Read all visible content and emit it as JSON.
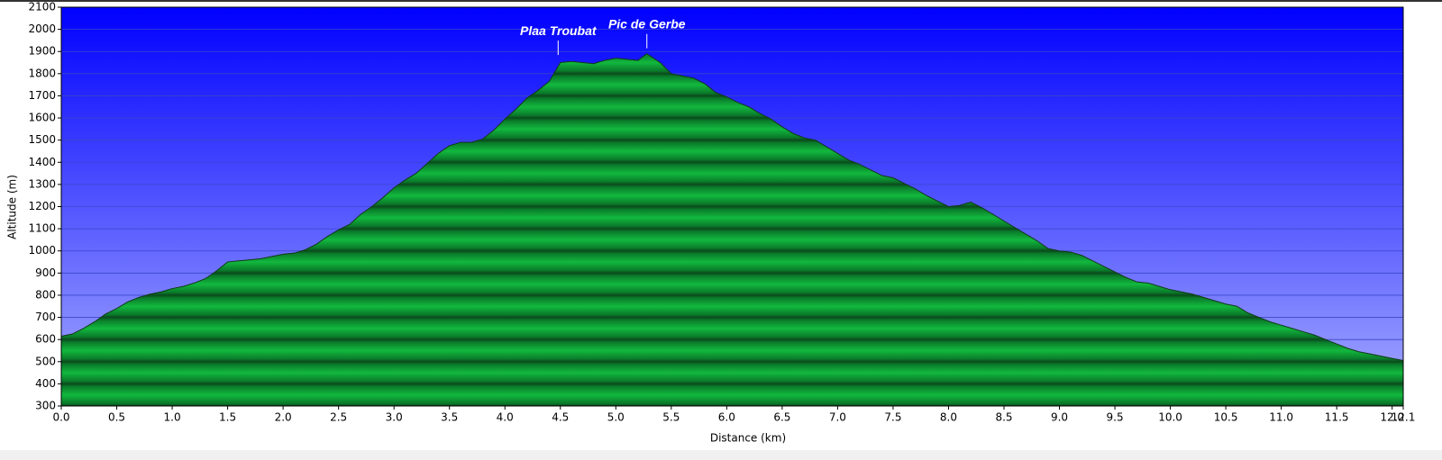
{
  "chart_data": {
    "type": "area",
    "x_label": "Distance   (km)",
    "y_label": "Altitude (m)",
    "x": [
      0.0,
      0.1,
      0.2,
      0.3,
      0.4,
      0.5,
      0.6,
      0.7,
      0.8,
      0.9,
      1.0,
      1.1,
      1.2,
      1.3,
      1.4,
      1.5,
      1.6,
      1.7,
      1.8,
      1.9,
      2.0,
      2.1,
      2.2,
      2.3,
      2.4,
      2.5,
      2.6,
      2.7,
      2.8,
      2.9,
      3.0,
      3.1,
      3.2,
      3.3,
      3.4,
      3.5,
      3.6,
      3.7,
      3.8,
      3.9,
      4.0,
      4.1,
      4.2,
      4.3,
      4.4,
      4.5,
      4.6,
      4.7,
      4.8,
      4.9,
      5.0,
      5.1,
      5.2,
      5.28,
      5.4,
      5.5,
      5.6,
      5.7,
      5.8,
      5.9,
      6.0,
      6.1,
      6.2,
      6.3,
      6.4,
      6.5,
      6.6,
      6.7,
      6.8,
      6.9,
      7.0,
      7.1,
      7.2,
      7.3,
      7.4,
      7.5,
      7.6,
      7.7,
      7.8,
      7.9,
      8.0,
      8.1,
      8.2,
      8.3,
      8.4,
      8.5,
      8.6,
      8.7,
      8.8,
      8.9,
      9.0,
      9.1,
      9.2,
      9.3,
      9.4,
      9.5,
      9.6,
      9.7,
      9.8,
      9.9,
      10.0,
      10.1,
      10.2,
      10.3,
      10.4,
      10.5,
      10.6,
      10.7,
      10.8,
      10.9,
      11.0,
      11.1,
      11.2,
      11.3,
      11.4,
      11.5,
      11.6,
      11.7,
      11.8,
      11.9,
      12.0,
      12.1
    ],
    "values": [
      615,
      625,
      650,
      680,
      715,
      740,
      770,
      790,
      805,
      815,
      830,
      840,
      855,
      875,
      910,
      950,
      955,
      960,
      965,
      975,
      985,
      990,
      1005,
      1030,
      1065,
      1095,
      1120,
      1165,
      1200,
      1240,
      1285,
      1320,
      1350,
      1395,
      1440,
      1475,
      1490,
      1490,
      1505,
      1545,
      1595,
      1640,
      1690,
      1725,
      1765,
      1850,
      1855,
      1850,
      1845,
      1860,
      1870,
      1865,
      1860,
      1890,
      1850,
      1800,
      1790,
      1780,
      1755,
      1715,
      1695,
      1670,
      1650,
      1620,
      1595,
      1560,
      1530,
      1510,
      1500,
      1470,
      1440,
      1410,
      1390,
      1365,
      1340,
      1330,
      1305,
      1280,
      1250,
      1225,
      1200,
      1205,
      1220,
      1195,
      1165,
      1135,
      1105,
      1075,
      1045,
      1010,
      1000,
      995,
      980,
      955,
      930,
      905,
      880,
      860,
      855,
      840,
      825,
      815,
      805,
      790,
      775,
      760,
      750,
      720,
      700,
      680,
      665,
      650,
      635,
      620,
      600,
      580,
      560,
      545,
      535,
      525,
      515,
      505
    ],
    "color": "#12b83e",
    "annotations": [
      {
        "text": "Plaa Troubat",
        "x": 4.48,
        "y": 1860
      },
      {
        "text": "Pic de Gerbe",
        "x": 5.28,
        "y": 1890
      }
    ],
    "xlim": [
      0,
      12.1
    ],
    "xticks": [
      {
        "value": 0,
        "label": "0.0"
      },
      0.5,
      {
        "value": 1,
        "label": "1.0"
      },
      1.5,
      {
        "value": 2,
        "label": "2.0"
      },
      2.5,
      {
        "value": 3,
        "label": "3.0"
      },
      3.5,
      {
        "value": 4,
        "label": "4.0"
      },
      4.5,
      {
        "value": 5,
        "label": "5.0"
      },
      5.5,
      {
        "value": 6,
        "label": "6.0"
      },
      6.5,
      {
        "value": 7,
        "label": "7.0"
      },
      7.5,
      {
        "value": 8,
        "label": "8.0"
      },
      8.5,
      {
        "value": 9,
        "label": "9.0"
      },
      9.5,
      {
        "value": 10,
        "label": "10.0"
      },
      10.5,
      {
        "value": 11,
        "label": "11.0"
      },
      11.5,
      {
        "value": 12,
        "label": "12.0"
      },
      12.1
    ],
    "ylim": [
      300,
      2100
    ],
    "yticks": [
      300,
      400,
      500,
      600,
      700,
      800,
      900,
      1000,
      1100,
      1200,
      1300,
      1400,
      1500,
      1600,
      1700,
      1800,
      1900,
      2000,
      2100
    ],
    "grid": true
  }
}
